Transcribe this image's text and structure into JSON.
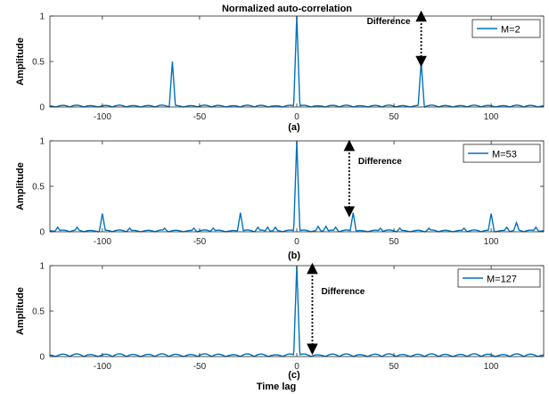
{
  "figure": {
    "title": "Normalized auto-correlation",
    "ylabel": "Amplitude",
    "xlabel": "Time lag",
    "annotation": "Difference"
  },
  "colors": {
    "series": "#0072BD",
    "axis": "#262626",
    "background": "#ffffff"
  },
  "chart_data": [
    {
      "type": "line",
      "panel_label": "(a)",
      "xlabel": "",
      "ylabel": "Amplitude",
      "xlim": [
        -127,
        127
      ],
      "ylim": [
        0,
        1
      ],
      "xticks": [
        -100,
        -50,
        0,
        50,
        100
      ],
      "yticks": [
        0,
        0.5,
        1
      ],
      "legend": "top-right",
      "grid": false,
      "series": [
        {
          "name": "M=2",
          "color": "#0072BD",
          "peaks": [
            {
              "x": -64,
              "y": 0.5
            },
            {
              "x": 0,
              "y": 1.0
            },
            {
              "x": 64,
              "y": 0.5
            }
          ],
          "sidelobe_level": 0.02
        }
      ],
      "annotations": [
        {
          "text": "Difference",
          "x_from": 64,
          "y_from": 1.0,
          "y_to": 0.5
        }
      ]
    },
    {
      "type": "line",
      "panel_label": "(b)",
      "xlabel": "",
      "ylabel": "Amplitude",
      "xlim": [
        -127,
        127
      ],
      "ylim": [
        0,
        1
      ],
      "xticks": [
        -100,
        -50,
        0,
        50,
        100
      ],
      "yticks": [
        0,
        0.5,
        1
      ],
      "legend": "top-right",
      "grid": false,
      "series": [
        {
          "name": "M=53",
          "color": "#0072BD",
          "peaks": [
            {
              "x": -123,
              "y": 0.05
            },
            {
              "x": -113,
              "y": 0.05
            },
            {
              "x": -100,
              "y": 0.2
            },
            {
              "x": -86,
              "y": 0.04
            },
            {
              "x": -68,
              "y": 0.04
            },
            {
              "x": -53,
              "y": 0.04
            },
            {
              "x": -43,
              "y": 0.04
            },
            {
              "x": -29,
              "y": 0.21
            },
            {
              "x": -20,
              "y": 0.05
            },
            {
              "x": -15,
              "y": 0.05
            },
            {
              "x": -11,
              "y": 0.05
            },
            {
              "x": 0,
              "y": 1.0
            },
            {
              "x": 11,
              "y": 0.06
            },
            {
              "x": 15,
              "y": 0.06
            },
            {
              "x": 20,
              "y": 0.05
            },
            {
              "x": 29,
              "y": 0.21
            },
            {
              "x": 43,
              "y": 0.04
            },
            {
              "x": 53,
              "y": 0.04
            },
            {
              "x": 68,
              "y": 0.04
            },
            {
              "x": 86,
              "y": 0.04
            },
            {
              "x": 100,
              "y": 0.2
            },
            {
              "x": 108,
              "y": 0.05
            },
            {
              "x": 113,
              "y": 0.1
            },
            {
              "x": 123,
              "y": 0.05
            }
          ],
          "sidelobe_level": 0.02
        }
      ],
      "annotations": [
        {
          "text": "Difference",
          "x_from": 27,
          "y_from": 0.95,
          "y_to": 0.22
        }
      ]
    },
    {
      "type": "line",
      "panel_label": "(c)",
      "xlabel": "Time lag",
      "ylabel": "Amplitude",
      "xlim": [
        -127,
        127
      ],
      "ylim": [
        0,
        1
      ],
      "xticks": [
        -100,
        -50,
        0,
        50,
        100
      ],
      "yticks": [
        0,
        0.5,
        1
      ],
      "legend": "top-right",
      "grid": false,
      "series": [
        {
          "name": "M=127",
          "color": "#0072BD",
          "peaks": [
            {
              "x": 0,
              "y": 1.0
            }
          ],
          "sidelobe_level": 0.03
        }
      ],
      "annotations": [
        {
          "text": "Difference",
          "x_from": 8,
          "y_from": 0.97,
          "y_to": 0.08
        }
      ]
    }
  ]
}
